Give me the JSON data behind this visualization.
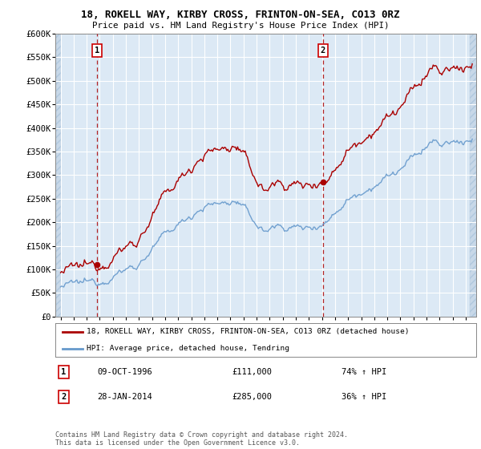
{
  "title1": "18, ROKELL WAY, KIRBY CROSS, FRINTON-ON-SEA, CO13 0RZ",
  "title2": "Price paid vs. HM Land Registry's House Price Index (HPI)",
  "ylim": [
    0,
    600000
  ],
  "yticks": [
    0,
    50000,
    100000,
    150000,
    200000,
    250000,
    300000,
    350000,
    400000,
    450000,
    500000,
    550000,
    600000
  ],
  "ytick_labels": [
    "£0",
    "£50K",
    "£100K",
    "£150K",
    "£200K",
    "£250K",
    "£300K",
    "£350K",
    "£400K",
    "£450K",
    "£500K",
    "£550K",
    "£600K"
  ],
  "bg_color": "#ffffff",
  "plot_bg_color": "#dce9f5",
  "grid_color": "#ffffff",
  "hatch_color": "#c8d8e8",
  "line1_color": "#aa0000",
  "line2_color": "#6699cc",
  "sale1_date": 1996.78,
  "sale1_price": 111000,
  "sale2_date": 2014.07,
  "sale2_price": 285000,
  "sale1_label": "1",
  "sale2_label": "2",
  "legend1_text": "18, ROKELL WAY, KIRBY CROSS, FRINTON-ON-SEA, CO13 0RZ (detached house)",
  "legend2_text": "HPI: Average price, detached house, Tendring",
  "note1_label": "1",
  "note1_date": "09-OCT-1996",
  "note1_price": "£111,000",
  "note1_hpi": "74% ↑ HPI",
  "note2_label": "2",
  "note2_date": "28-JAN-2014",
  "note2_price": "£285,000",
  "note2_hpi": "36% ↑ HPI",
  "copyright": "Contains HM Land Registry data © Crown copyright and database right 2024.\nThis data is licensed under the Open Government Licence v3.0."
}
